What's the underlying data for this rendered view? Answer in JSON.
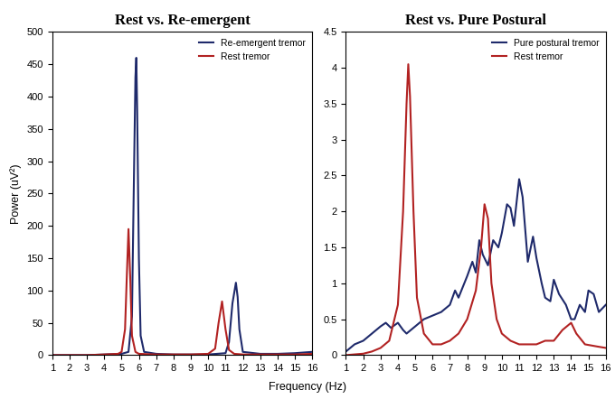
{
  "xlabel": "Frequency (Hz)",
  "chart_data": [
    {
      "type": "line",
      "title": "Rest vs. Re-emergent",
      "ylabel": "Power (uV²)",
      "xlim": [
        1,
        16
      ],
      "xticks": [
        1,
        2,
        3,
        4,
        5,
        6,
        7,
        8,
        9,
        10,
        11,
        12,
        13,
        14,
        15,
        16
      ],
      "ylim": [
        0,
        500
      ],
      "yticks": [
        0,
        50,
        100,
        150,
        200,
        250,
        300,
        350,
        400,
        450,
        500
      ],
      "grid": false,
      "legend": "upper right",
      "series": [
        {
          "name": "Re-emergent tremor",
          "color": "#1f2a6b",
          "x": [
            1,
            2,
            3,
            4,
            5,
            5.4,
            5.6,
            5.7,
            5.8,
            5.85,
            5.9,
            6.0,
            6.1,
            6.3,
            7,
            8,
            9,
            10,
            11,
            11.2,
            11.4,
            11.6,
            11.7,
            11.8,
            12,
            13,
            14,
            15,
            16
          ],
          "values": [
            0,
            0,
            0,
            1,
            2,
            5,
            60,
            250,
            430,
            460,
            380,
            150,
            30,
            5,
            2,
            1,
            1,
            1,
            3,
            20,
            80,
            112,
            90,
            40,
            5,
            2,
            2,
            3,
            5
          ]
        },
        {
          "name": "Rest tremor",
          "color": "#b22222",
          "x": [
            1,
            2,
            3,
            4,
            4.8,
            5.0,
            5.2,
            5.3,
            5.4,
            5.5,
            5.6,
            5.8,
            6.0,
            7,
            8,
            9,
            10,
            10.4,
            10.6,
            10.8,
            11.0,
            11.2,
            11.5,
            12,
            13,
            14,
            15,
            16
          ],
          "values": [
            0,
            0,
            0,
            1,
            2,
            5,
            40,
            120,
            195,
            120,
            30,
            5,
            2,
            1,
            1,
            1,
            2,
            10,
            50,
            83,
            40,
            8,
            2,
            1,
            1,
            1,
            1,
            2
          ]
        }
      ]
    },
    {
      "type": "line",
      "title": "Rest vs. Pure Postural",
      "xlim": [
        1,
        16
      ],
      "xticks": [
        1,
        2,
        3,
        4,
        5,
        6,
        7,
        8,
        9,
        10,
        11,
        12,
        13,
        14,
        15,
        16
      ],
      "ylim": [
        0,
        4.5
      ],
      "yticks": [
        0,
        0.5,
        1,
        1.5,
        2,
        2.5,
        3,
        3.5,
        4,
        4.5
      ],
      "grid": false,
      "legend": "upper right",
      "series": [
        {
          "name": "Pure postural tremor",
          "color": "#1f2a6b",
          "x": [
            1,
            1.5,
            2,
            2.5,
            3,
            3.3,
            3.6,
            4,
            4.3,
            4.5,
            5,
            5.5,
            6,
            6.5,
            7,
            7.3,
            7.5,
            8,
            8.3,
            8.5,
            8.7,
            8.9,
            9.2,
            9.5,
            9.8,
            10,
            10.3,
            10.5,
            10.7,
            11,
            11.2,
            11.5,
            11.8,
            12,
            12.3,
            12.5,
            12.8,
            13,
            13.3,
            13.7,
            14,
            14.2,
            14.5,
            14.8,
            15,
            15.3,
            15.6,
            16
          ],
          "values": [
            0.05,
            0.15,
            0.2,
            0.3,
            0.4,
            0.45,
            0.38,
            0.45,
            0.35,
            0.3,
            0.4,
            0.5,
            0.55,
            0.6,
            0.7,
            0.9,
            0.8,
            1.1,
            1.3,
            1.15,
            1.6,
            1.4,
            1.25,
            1.6,
            1.5,
            1.7,
            2.1,
            2.05,
            1.8,
            2.45,
            2.2,
            1.3,
            1.65,
            1.35,
            1.0,
            0.8,
            0.75,
            1.05,
            0.85,
            0.7,
            0.5,
            0.5,
            0.7,
            0.6,
            0.9,
            0.85,
            0.6,
            0.7
          ]
        },
        {
          "name": "Rest tremor",
          "color": "#b22222",
          "x": [
            1,
            2,
            2.5,
            3,
            3.5,
            4,
            4.3,
            4.5,
            4.6,
            4.7,
            4.9,
            5.1,
            5.5,
            6,
            6.5,
            7,
            7.5,
            8,
            8.5,
            8.8,
            9.0,
            9.2,
            9.4,
            9.7,
            10,
            10.5,
            11,
            12,
            12.5,
            13,
            13.5,
            14,
            14.3,
            14.8,
            15.5,
            16
          ],
          "values": [
            0,
            0.02,
            0.05,
            0.1,
            0.2,
            0.7,
            2.0,
            3.5,
            4.05,
            3.6,
            2.0,
            0.8,
            0.3,
            0.15,
            0.15,
            0.2,
            0.3,
            0.5,
            0.9,
            1.5,
            2.1,
            1.9,
            1.0,
            0.5,
            0.3,
            0.2,
            0.15,
            0.15,
            0.2,
            0.2,
            0.35,
            0.45,
            0.3,
            0.15,
            0.12,
            0.1
          ]
        }
      ]
    }
  ]
}
